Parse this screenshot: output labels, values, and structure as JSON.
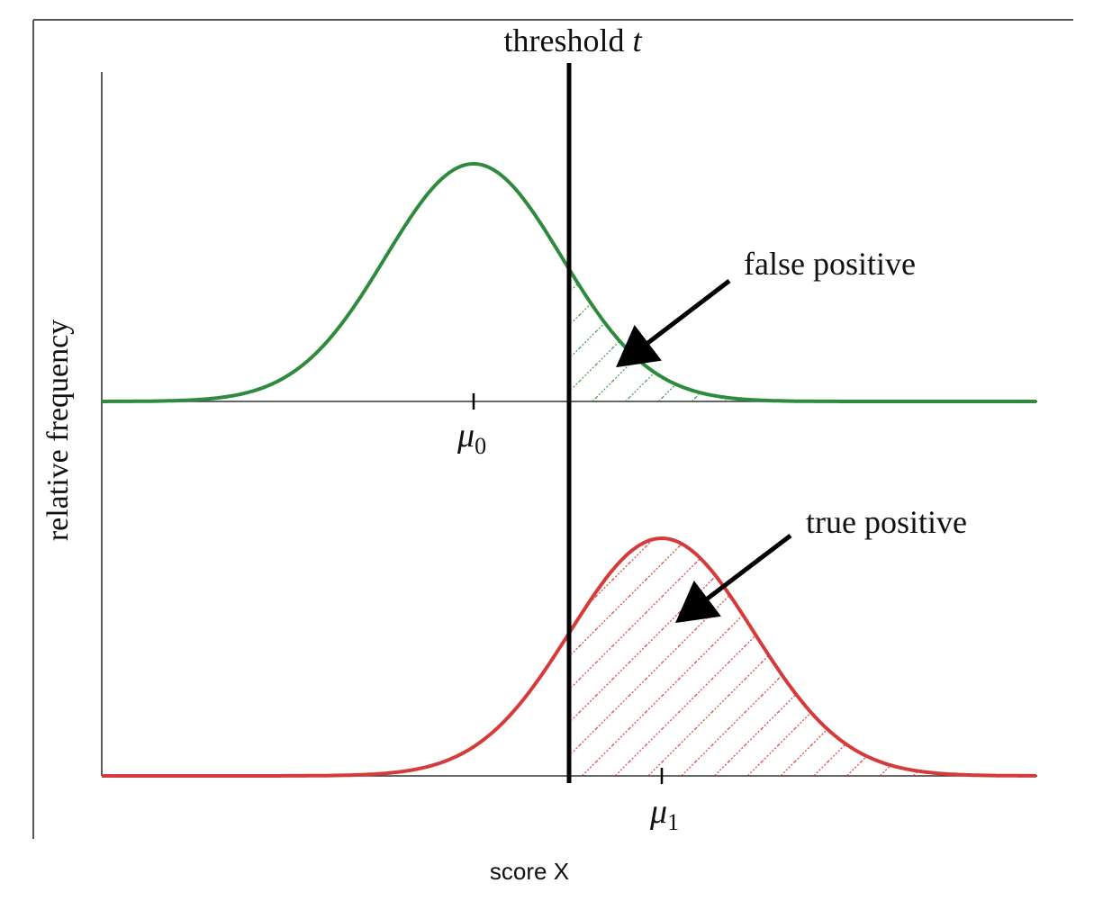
{
  "diagram": {
    "threshold_label_text": "threshold ",
    "threshold_label_var": "t",
    "y_axis_label": "relative frequency",
    "x_axis_label": "score X",
    "mu0_symbol": "μ",
    "mu0_sub": "0",
    "mu1_symbol": "μ",
    "mu1_sub": "1",
    "false_positive_label": "false positive",
    "true_positive_label": "true positive",
    "negative_curve_color": "#2e8b3e",
    "positive_curve_color": "#d63b3b",
    "threshold_color": "#000000"
  }
}
